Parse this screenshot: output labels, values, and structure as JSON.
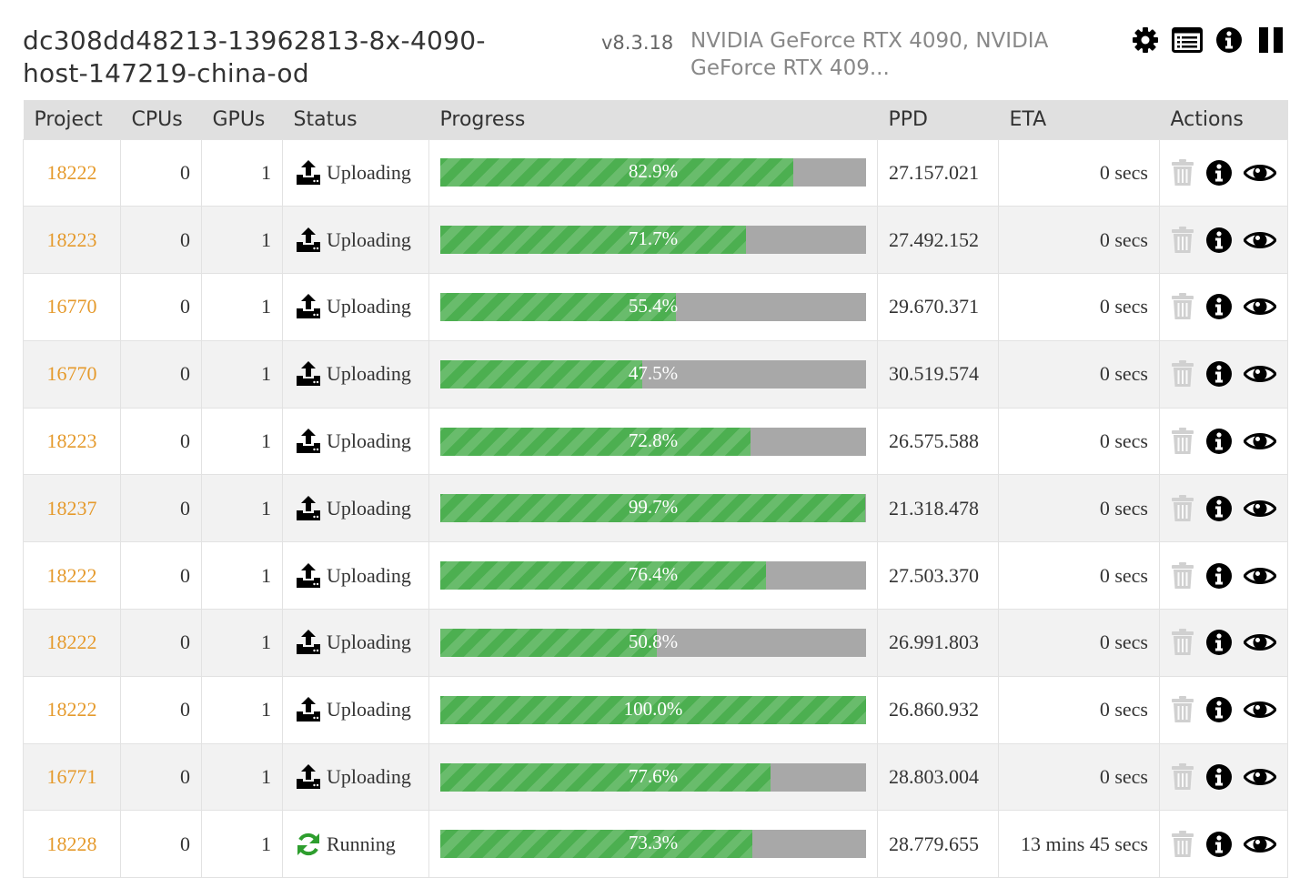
{
  "header": {
    "host": "dc308dd48213-13962813-8x-4090-host-147219-china-od",
    "version": "v8.3.18",
    "gpus": "NVIDIA GeForce RTX 4090, NVIDIA GeForce RTX 409..."
  },
  "toolbar": {
    "icons": [
      "gear-icon",
      "log-list-icon",
      "info-icon",
      "pause-icon"
    ]
  },
  "columns": [
    "Project",
    "CPUs",
    "GPUs",
    "Status",
    "Progress",
    "PPD",
    "ETA",
    "Actions"
  ],
  "colors": {
    "project": "#e59a2c",
    "progress_fill": "#4caf50",
    "progress_track": "#a8a8a8",
    "running_icon": "#2e9e2e",
    "header_bg": "#e0e0e0",
    "trash_disabled": "#cccccc"
  },
  "rows": [
    {
      "project": "18222",
      "cpus": "0",
      "gpus": "1",
      "status": "Uploading",
      "status_icon": "upload-icon",
      "progress": 0.829,
      "progress_text": "82.9%",
      "ppd": "27.157.021",
      "eta": "0 secs"
    },
    {
      "project": "18223",
      "cpus": "0",
      "gpus": "1",
      "status": "Uploading",
      "status_icon": "upload-icon",
      "progress": 0.717,
      "progress_text": "71.7%",
      "ppd": "27.492.152",
      "eta": "0 secs"
    },
    {
      "project": "16770",
      "cpus": "0",
      "gpus": "1",
      "status": "Uploading",
      "status_icon": "upload-icon",
      "progress": 0.554,
      "progress_text": "55.4%",
      "ppd": "29.670.371",
      "eta": "0 secs"
    },
    {
      "project": "16770",
      "cpus": "0",
      "gpus": "1",
      "status": "Uploading",
      "status_icon": "upload-icon",
      "progress": 0.475,
      "progress_text": "47.5%",
      "ppd": "30.519.574",
      "eta": "0 secs"
    },
    {
      "project": "18223",
      "cpus": "0",
      "gpus": "1",
      "status": "Uploading",
      "status_icon": "upload-icon",
      "progress": 0.728,
      "progress_text": "72.8%",
      "ppd": "26.575.588",
      "eta": "0 secs"
    },
    {
      "project": "18237",
      "cpus": "0",
      "gpus": "1",
      "status": "Uploading",
      "status_icon": "upload-icon",
      "progress": 0.997,
      "progress_text": "99.7%",
      "ppd": "21.318.478",
      "eta": "0 secs"
    },
    {
      "project": "18222",
      "cpus": "0",
      "gpus": "1",
      "status": "Uploading",
      "status_icon": "upload-icon",
      "progress": 0.764,
      "progress_text": "76.4%",
      "ppd": "27.503.370",
      "eta": "0 secs"
    },
    {
      "project": "18222",
      "cpus": "0",
      "gpus": "1",
      "status": "Uploading",
      "status_icon": "upload-icon",
      "progress": 0.508,
      "progress_text": "50.8%",
      "ppd": "26.991.803",
      "eta": "0 secs"
    },
    {
      "project": "18222",
      "cpus": "0",
      "gpus": "1",
      "status": "Uploading",
      "status_icon": "upload-icon",
      "progress": 1.0,
      "progress_text": "100.0%",
      "ppd": "26.860.932",
      "eta": "0 secs"
    },
    {
      "project": "16771",
      "cpus": "0",
      "gpus": "1",
      "status": "Uploading",
      "status_icon": "upload-icon",
      "progress": 0.776,
      "progress_text": "77.6%",
      "ppd": "28.803.004",
      "eta": "0 secs"
    },
    {
      "project": "18228",
      "cpus": "0",
      "gpus": "1",
      "status": "Running",
      "status_icon": "running-icon",
      "progress": 0.733,
      "progress_text": "73.3%",
      "ppd": "28.779.655",
      "eta": "13 mins 45 secs"
    }
  ],
  "row_actions": [
    "trash-icon",
    "info-icon",
    "eye-icon"
  ]
}
